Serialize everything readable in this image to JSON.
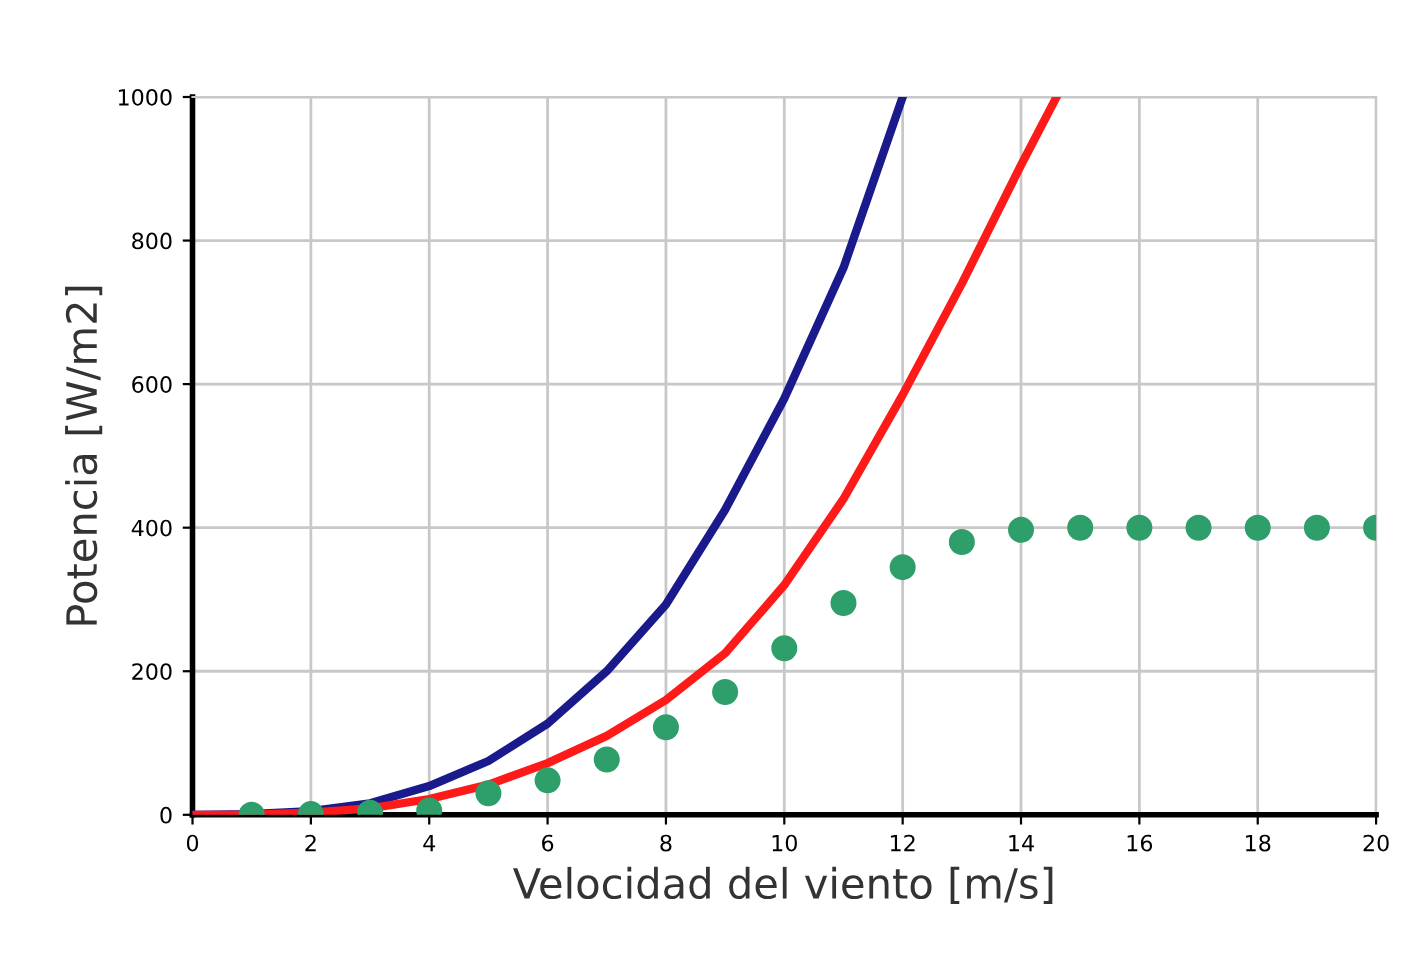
{
  "chart_data": {
    "type": "line",
    "xlabel": "Velocidad del viento [m/s]",
    "ylabel": "Potencia [W/m2]",
    "xlim": [
      0,
      20
    ],
    "xticks": [
      0,
      2,
      4,
      6,
      8,
      10,
      12,
      14,
      16,
      18,
      20
    ],
    "ylim": [
      0,
      1000
    ],
    "yticks": [
      0,
      200,
      400,
      600,
      800,
      1000
    ],
    "grid": true,
    "legend": false,
    "series": [
      {
        "color": "#1a1a8c",
        "x": [
          0,
          1,
          2,
          3,
          4,
          5,
          6,
          7,
          8,
          9,
          10,
          11,
          12
        ],
        "values": [
          0,
          1,
          5,
          16,
          40,
          75,
          127,
          200,
          293,
          425,
          580,
          762,
          1000
        ]
      },
      {
        "color": "#ff1a1a",
        "x": [
          0,
          1,
          2,
          3,
          4,
          5,
          6,
          7,
          8,
          9,
          10,
          11,
          12,
          13,
          14,
          14.6
        ],
        "values": [
          0,
          0,
          3,
          9,
          22,
          42,
          72,
          110,
          160,
          225,
          320,
          440,
          585,
          740,
          905,
          1000
        ]
      },
      {
        "type": "scatter",
        "color": "#2e9e6a",
        "marker": "circle",
        "x": [
          1,
          2,
          3,
          4,
          5,
          6,
          7,
          8,
          9,
          10,
          11,
          12,
          13,
          14,
          15,
          16,
          17,
          18,
          19,
          20
        ],
        "values": [
          0,
          1,
          3,
          6,
          30,
          48,
          77,
          122,
          171,
          232,
          295,
          345,
          380,
          397,
          400,
          400,
          400,
          400,
          400,
          400
        ]
      }
    ]
  }
}
